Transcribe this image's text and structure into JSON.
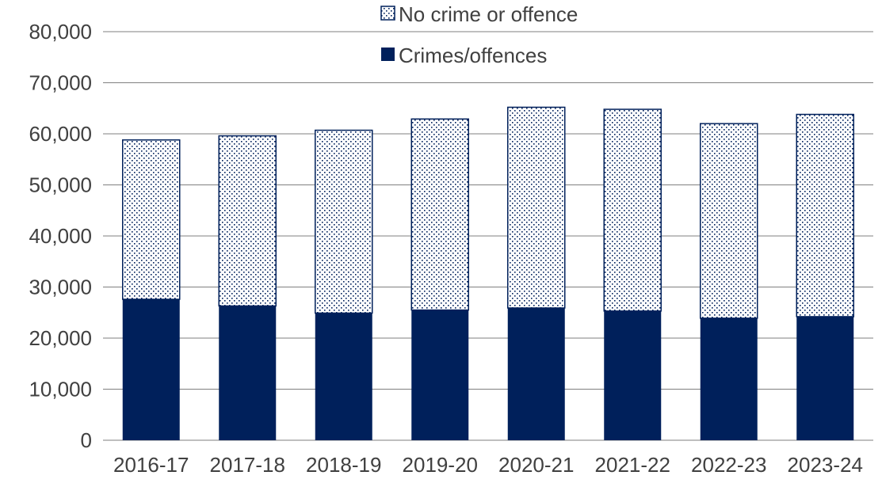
{
  "chart_data": {
    "type": "bar",
    "stacked": true,
    "categories": [
      "2016-17",
      "2017-18",
      "2018-19",
      "2019-20",
      "2020-21",
      "2021-22",
      "2022-23",
      "2023-24"
    ],
    "series": [
      {
        "name": "Crimes/offences",
        "values": [
          27600,
          26300,
          24900,
          25500,
          25900,
          25300,
          23900,
          24200
        ],
        "color": "#00205b",
        "fill": "solid"
      },
      {
        "name": "No crime or offence",
        "values": [
          31200,
          33300,
          35800,
          37400,
          39300,
          39500,
          38100,
          39600
        ],
        "color": "#00205b",
        "fill": "dotted"
      }
    ],
    "ylim": [
      0,
      80000
    ],
    "yticks": [
      0,
      10000,
      20000,
      30000,
      40000,
      50000,
      60000,
      70000,
      80000
    ],
    "ytick_labels": [
      "0",
      "10,000",
      "20,000",
      "30,000",
      "40,000",
      "50,000",
      "60,000",
      "70,000",
      "80,000"
    ],
    "grid": true,
    "legend_position": "top-center",
    "legend_order": [
      "No crime or offence",
      "Crimes/offences"
    ]
  }
}
